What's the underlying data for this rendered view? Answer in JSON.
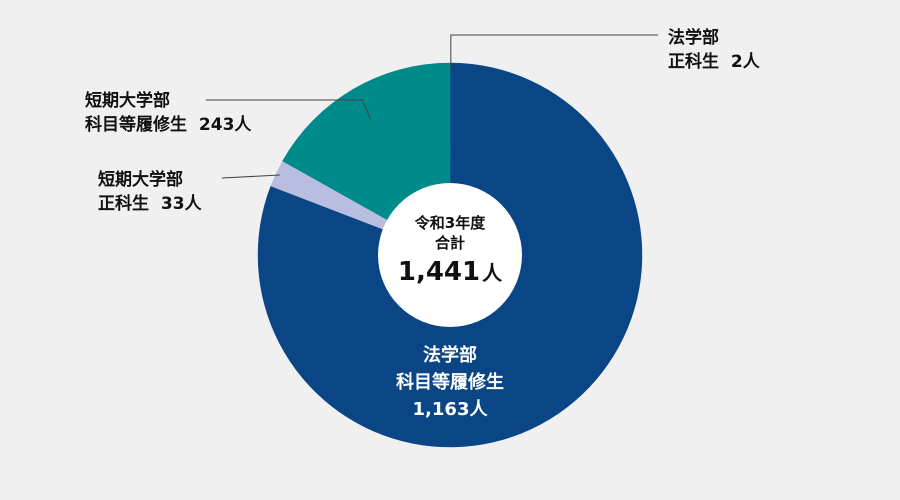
{
  "chart_data": {
    "type": "pie",
    "center": {
      "line1": "令和3年度",
      "line2": "合計",
      "total": "1,441",
      "unit": "人"
    },
    "slices": [
      {
        "label_line1": "法学部",
        "label_line2": "正科生",
        "value": 2,
        "value_text": "2人",
        "color": "#0a4586"
      },
      {
        "label_line1": "法学部",
        "label_line2": "科目等履修生",
        "value": 1163,
        "value_text": "1,163人",
        "color": "#0a4586"
      },
      {
        "label_line1": "短期大学部",
        "label_line2": "正科生",
        "value": 33,
        "value_text": "33人",
        "color": "#b9bddf"
      },
      {
        "label_line1": "短期大学部",
        "label_line2": "科目等履修生",
        "value": 243,
        "value_text": "243人",
        "color": "#008b8b"
      }
    ]
  }
}
